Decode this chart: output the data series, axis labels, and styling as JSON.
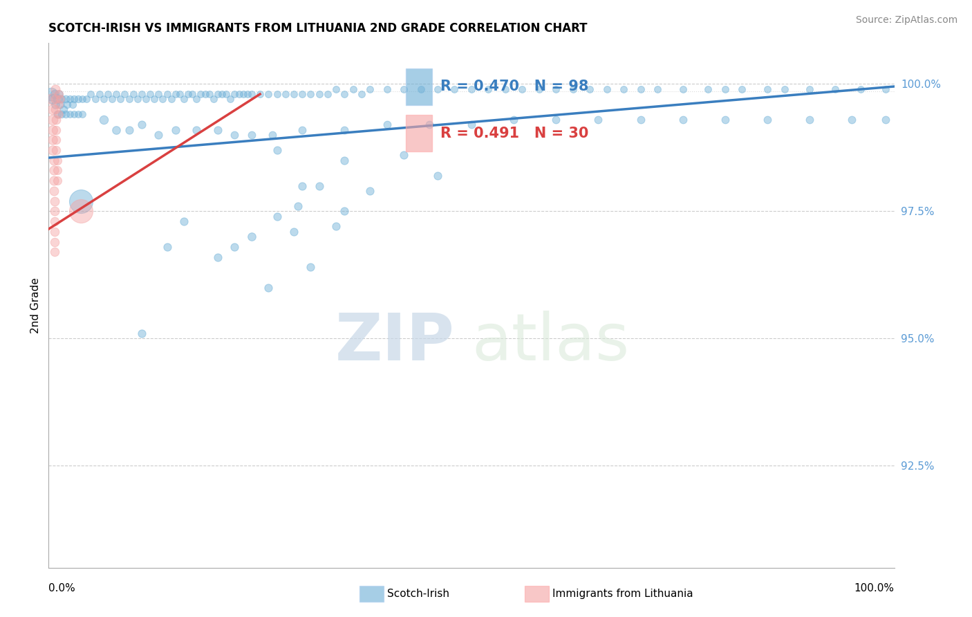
{
  "title": "SCOTCH-IRISH VS IMMIGRANTS FROM LITHUANIA 2ND GRADE CORRELATION CHART",
  "source_text": "Source: ZipAtlas.com",
  "ylabel": "2nd Grade",
  "y_tick_labels": [
    "92.5%",
    "95.0%",
    "97.5%",
    "100.0%"
  ],
  "y_tick_values": [
    0.925,
    0.95,
    0.975,
    1.0
  ],
  "x_range": [
    0.0,
    1.0
  ],
  "y_range": [
    0.905,
    1.008
  ],
  "r_blue": 0.47,
  "n_blue": 98,
  "r_pink": 0.491,
  "n_pink": 30,
  "blue_color": "#6baed6",
  "pink_color": "#f4a3a3",
  "trendline_blue": "#3a7ebf",
  "trendline_pink": "#d94040",
  "legend_label_blue": "Scotch-Irish",
  "legend_label_pink": "Immigrants from Lithuania",
  "watermark_zip": "ZIP",
  "watermark_atlas": "atlas",
  "blue_points": [
    [
      0.003,
      0.998,
      180
    ],
    [
      0.005,
      0.997,
      100
    ],
    [
      0.007,
      0.998,
      80
    ],
    [
      0.008,
      0.996,
      70
    ],
    [
      0.01,
      0.997,
      80
    ],
    [
      0.01,
      0.994,
      60
    ],
    [
      0.012,
      0.998,
      70
    ],
    [
      0.014,
      0.996,
      60
    ],
    [
      0.015,
      0.997,
      60
    ],
    [
      0.015,
      0.994,
      55
    ],
    [
      0.018,
      0.995,
      60
    ],
    [
      0.02,
      0.997,
      60
    ],
    [
      0.02,
      0.994,
      55
    ],
    [
      0.022,
      0.996,
      55
    ],
    [
      0.025,
      0.997,
      55
    ],
    [
      0.025,
      0.994,
      50
    ],
    [
      0.028,
      0.996,
      55
    ],
    [
      0.03,
      0.997,
      55
    ],
    [
      0.03,
      0.994,
      50
    ],
    [
      0.035,
      0.997,
      55
    ],
    [
      0.035,
      0.994,
      50
    ],
    [
      0.04,
      0.997,
      50
    ],
    [
      0.04,
      0.994,
      50
    ],
    [
      0.045,
      0.997,
      50
    ],
    [
      0.05,
      0.998,
      50
    ],
    [
      0.055,
      0.997,
      50
    ],
    [
      0.06,
      0.998,
      50
    ],
    [
      0.065,
      0.997,
      50
    ],
    [
      0.07,
      0.998,
      50
    ],
    [
      0.075,
      0.997,
      50
    ],
    [
      0.08,
      0.998,
      50
    ],
    [
      0.085,
      0.997,
      50
    ],
    [
      0.09,
      0.998,
      50
    ],
    [
      0.095,
      0.997,
      50
    ],
    [
      0.1,
      0.998,
      50
    ],
    [
      0.105,
      0.997,
      50
    ],
    [
      0.11,
      0.998,
      50
    ],
    [
      0.115,
      0.997,
      50
    ],
    [
      0.12,
      0.998,
      50
    ],
    [
      0.125,
      0.997,
      50
    ],
    [
      0.13,
      0.998,
      50
    ],
    [
      0.135,
      0.997,
      50
    ],
    [
      0.14,
      0.998,
      50
    ],
    [
      0.145,
      0.997,
      50
    ],
    [
      0.15,
      0.998,
      50
    ],
    [
      0.155,
      0.998,
      50
    ],
    [
      0.16,
      0.997,
      50
    ],
    [
      0.165,
      0.998,
      50
    ],
    [
      0.17,
      0.998,
      50
    ],
    [
      0.175,
      0.997,
      50
    ],
    [
      0.18,
      0.998,
      50
    ],
    [
      0.185,
      0.998,
      50
    ],
    [
      0.19,
      0.998,
      50
    ],
    [
      0.195,
      0.997,
      50
    ],
    [
      0.2,
      0.998,
      50
    ],
    [
      0.205,
      0.998,
      50
    ],
    [
      0.21,
      0.998,
      50
    ],
    [
      0.215,
      0.997,
      50
    ],
    [
      0.22,
      0.998,
      50
    ],
    [
      0.225,
      0.998,
      50
    ],
    [
      0.23,
      0.998,
      50
    ],
    [
      0.235,
      0.998,
      50
    ],
    [
      0.24,
      0.998,
      50
    ],
    [
      0.25,
      0.998,
      50
    ],
    [
      0.26,
      0.998,
      50
    ],
    [
      0.27,
      0.998,
      50
    ],
    [
      0.28,
      0.998,
      50
    ],
    [
      0.29,
      0.998,
      50
    ],
    [
      0.3,
      0.998,
      50
    ],
    [
      0.31,
      0.998,
      50
    ],
    [
      0.32,
      0.998,
      50
    ],
    [
      0.33,
      0.998,
      50
    ],
    [
      0.34,
      0.999,
      50
    ],
    [
      0.35,
      0.998,
      50
    ],
    [
      0.36,
      0.999,
      50
    ],
    [
      0.37,
      0.998,
      50
    ],
    [
      0.38,
      0.999,
      50
    ],
    [
      0.4,
      0.999,
      50
    ],
    [
      0.42,
      0.999,
      50
    ],
    [
      0.44,
      0.999,
      50
    ],
    [
      0.46,
      0.999,
      50
    ],
    [
      0.48,
      0.999,
      50
    ],
    [
      0.5,
      0.999,
      50
    ],
    [
      0.52,
      0.999,
      50
    ],
    [
      0.54,
      0.999,
      50
    ],
    [
      0.56,
      0.999,
      50
    ],
    [
      0.58,
      0.999,
      50
    ],
    [
      0.6,
      0.999,
      50
    ],
    [
      0.62,
      0.999,
      50
    ],
    [
      0.64,
      0.999,
      50
    ],
    [
      0.66,
      0.999,
      50
    ],
    [
      0.68,
      0.999,
      50
    ],
    [
      0.7,
      0.999,
      50
    ],
    [
      0.72,
      0.999,
      50
    ],
    [
      0.75,
      0.999,
      50
    ],
    [
      0.78,
      0.999,
      50
    ],
    [
      0.8,
      0.999,
      50
    ],
    [
      0.82,
      0.999,
      50
    ],
    [
      0.85,
      0.999,
      50
    ],
    [
      0.87,
      0.999,
      50
    ],
    [
      0.9,
      0.999,
      50
    ],
    [
      0.93,
      0.999,
      50
    ],
    [
      0.96,
      0.999,
      50
    ],
    [
      0.99,
      0.999,
      50
    ],
    [
      0.065,
      0.993,
      80
    ],
    [
      0.08,
      0.991,
      70
    ],
    [
      0.095,
      0.991,
      65
    ],
    [
      0.11,
      0.992,
      65
    ],
    [
      0.13,
      0.99,
      65
    ],
    [
      0.15,
      0.991,
      65
    ],
    [
      0.175,
      0.991,
      65
    ],
    [
      0.2,
      0.991,
      65
    ],
    [
      0.22,
      0.99,
      60
    ],
    [
      0.24,
      0.99,
      60
    ],
    [
      0.265,
      0.99,
      60
    ],
    [
      0.3,
      0.991,
      60
    ],
    [
      0.35,
      0.991,
      60
    ],
    [
      0.4,
      0.992,
      60
    ],
    [
      0.45,
      0.992,
      60
    ],
    [
      0.5,
      0.992,
      60
    ],
    [
      0.55,
      0.993,
      60
    ],
    [
      0.6,
      0.993,
      60
    ],
    [
      0.65,
      0.993,
      60
    ],
    [
      0.7,
      0.993,
      60
    ],
    [
      0.75,
      0.993,
      60
    ],
    [
      0.8,
      0.993,
      60
    ],
    [
      0.85,
      0.993,
      60
    ],
    [
      0.9,
      0.993,
      60
    ],
    [
      0.95,
      0.993,
      60
    ],
    [
      0.99,
      0.993,
      60
    ],
    [
      0.27,
      0.987,
      65
    ],
    [
      0.35,
      0.985,
      65
    ],
    [
      0.42,
      0.986,
      65
    ],
    [
      0.3,
      0.98,
      65
    ],
    [
      0.38,
      0.979,
      65
    ],
    [
      0.35,
      0.975,
      65
    ],
    [
      0.295,
      0.976,
      65
    ],
    [
      0.038,
      0.977,
      600
    ],
    [
      0.27,
      0.974,
      65
    ],
    [
      0.24,
      0.97,
      70
    ],
    [
      0.22,
      0.968,
      65
    ],
    [
      0.2,
      0.966,
      65
    ],
    [
      0.16,
      0.973,
      65
    ],
    [
      0.14,
      0.968,
      65
    ],
    [
      0.46,
      0.982,
      65
    ],
    [
      0.34,
      0.972,
      65
    ],
    [
      0.26,
      0.96,
      65
    ],
    [
      0.31,
      0.964,
      65
    ],
    [
      0.29,
      0.971,
      65
    ],
    [
      0.11,
      0.951,
      65
    ],
    [
      0.32,
      0.98,
      65
    ]
  ],
  "pink_points": [
    [
      0.004,
      0.997,
      130
    ],
    [
      0.005,
      0.995,
      110
    ],
    [
      0.005,
      0.993,
      110
    ],
    [
      0.005,
      0.991,
      100
    ],
    [
      0.005,
      0.989,
      95
    ],
    [
      0.005,
      0.987,
      95
    ],
    [
      0.006,
      0.985,
      90
    ],
    [
      0.006,
      0.983,
      90
    ],
    [
      0.006,
      0.981,
      90
    ],
    [
      0.006,
      0.979,
      85
    ],
    [
      0.007,
      0.977,
      85
    ],
    [
      0.007,
      0.975,
      85
    ],
    [
      0.007,
      0.973,
      80
    ],
    [
      0.007,
      0.971,
      80
    ],
    [
      0.007,
      0.969,
      80
    ],
    [
      0.007,
      0.967,
      80
    ],
    [
      0.008,
      0.999,
      90
    ],
    [
      0.008,
      0.997,
      85
    ],
    [
      0.008,
      0.995,
      85
    ],
    [
      0.009,
      0.993,
      85
    ],
    [
      0.009,
      0.991,
      80
    ],
    [
      0.009,
      0.989,
      80
    ],
    [
      0.009,
      0.987,
      80
    ],
    [
      0.01,
      0.985,
      75
    ],
    [
      0.01,
      0.983,
      75
    ],
    [
      0.01,
      0.981,
      75
    ],
    [
      0.012,
      0.998,
      75
    ],
    [
      0.012,
      0.996,
      70
    ],
    [
      0.012,
      0.994,
      70
    ],
    [
      0.014,
      0.997,
      70
    ],
    [
      0.038,
      0.975,
      600
    ]
  ],
  "trendline_blue_points": [
    [
      0.0,
      0.9855
    ],
    [
      1.0,
      0.9995
    ]
  ],
  "trendline_pink_points": [
    [
      0.0,
      0.9715
    ],
    [
      0.25,
      0.998
    ]
  ]
}
